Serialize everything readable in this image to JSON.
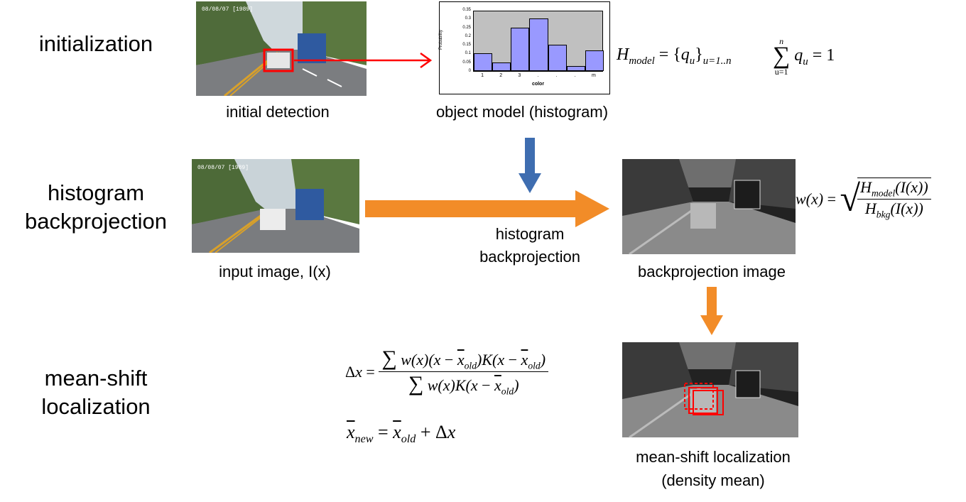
{
  "rows": {
    "initialization": "initialization",
    "histogram_backprojection": [
      "histogram",
      "backprojection"
    ],
    "meanshift_localization": [
      "mean-shift",
      "localization"
    ]
  },
  "captions": {
    "initial_detection": "initial detection",
    "object_model": "object model (histogram)",
    "input_image": "input image, I(x)",
    "histogram_backprojection": [
      "histogram",
      "backprojection"
    ],
    "backprojection_image": "backprojection image",
    "meanshift_localization": [
      "mean-shift localization",
      "(density mean)"
    ]
  },
  "histogram": {
    "ylabel": "Probability",
    "xlabel": "color",
    "yticks": [
      "0.35",
      "0.3",
      "0.25",
      "0.2",
      "0.15",
      "0.1",
      "0.05",
      "0"
    ],
    "xticks": [
      "1",
      "2",
      "3",
      ".",
      ".",
      ".",
      "m"
    ],
    "values": [
      0.1,
      0.05,
      0.25,
      0.3,
      0.15,
      0.03,
      0.12
    ],
    "bar_color": "#9999ff",
    "plot_bg": "#c0c0c0"
  },
  "overlays": {
    "camera_text": "08/08/07  [1989]"
  },
  "formulas": {
    "h_model": "H_model = {q_u}_{u=1..n}",
    "sum_q": "sum_{u=1}^{n} q_u = 1",
    "weight": "w(x) = sqrt( H_model(I(x)) / H_bkg(I(x)) )",
    "delta_x": "Δx = Σ w(x)(x − x̄_old)K(x − x̄_old) / Σ w(x)K(x − x̄_old)",
    "x_new": "x̄_new = x̄_old + Δx"
  },
  "colors": {
    "red_arrow": "#ff0000",
    "blue_arrow": "#3e6db0",
    "orange_arrow": "#f28c28",
    "bus": "#2f5aa0"
  }
}
